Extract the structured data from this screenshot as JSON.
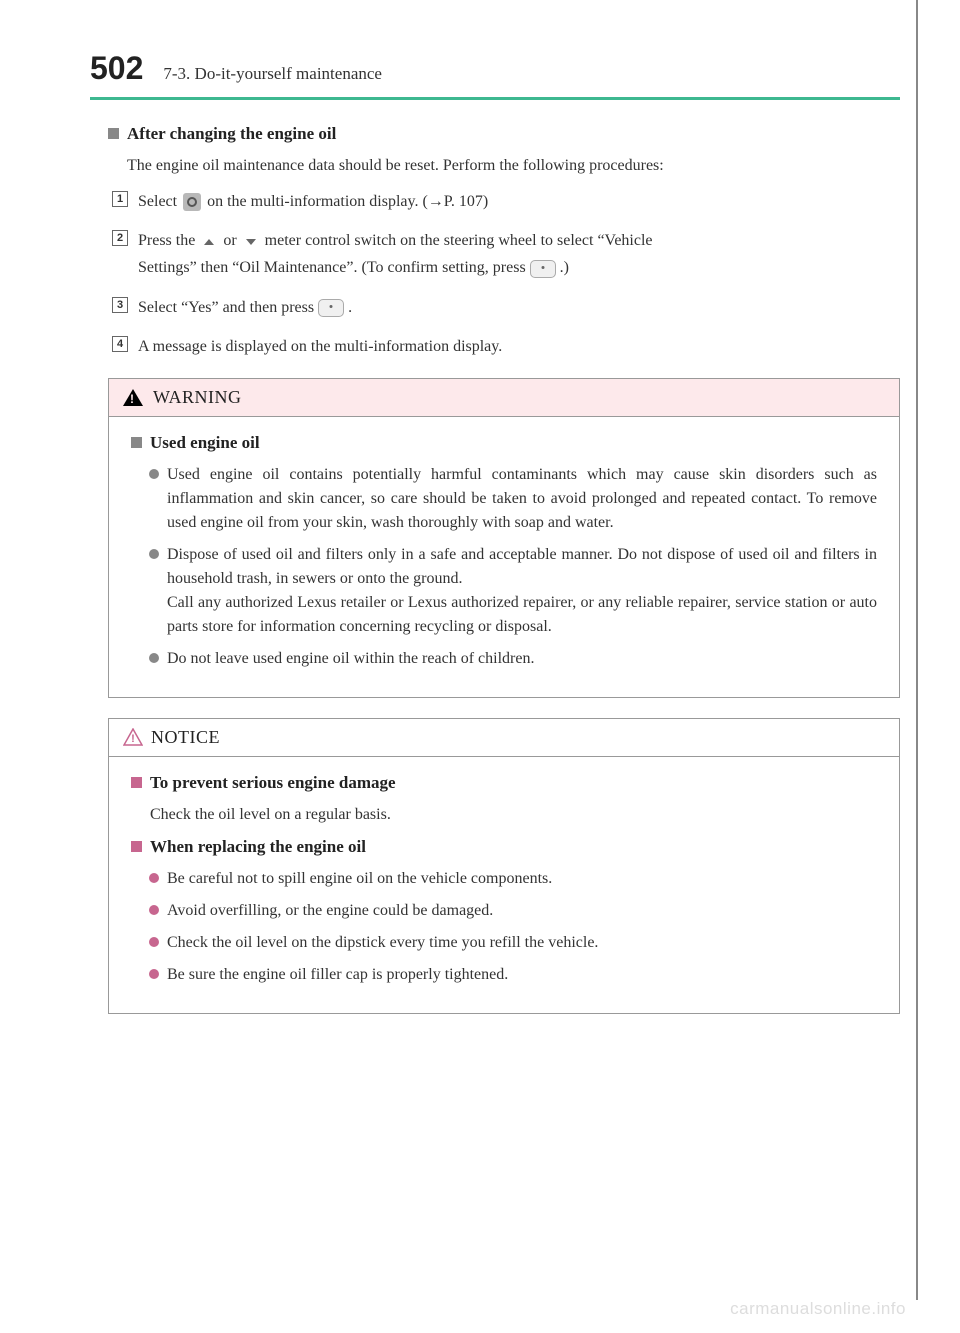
{
  "page_number": "502",
  "section_title": "7-3. Do-it-yourself maintenance",
  "colors": {
    "accent_green": "#3db890",
    "warning_bg": "#fde9eb",
    "pink": "#c7668f",
    "gray": "#888888",
    "border": "#999999",
    "text": "#333333"
  },
  "main": {
    "heading": "After changing the engine oil",
    "intro": "The engine oil maintenance data should be reset. Perform the following procedures:",
    "steps": [
      {
        "num": "1",
        "before": "Select ",
        "icon": "gear",
        "after": " on the multi-information display. (→P. 107)"
      },
      {
        "num": "2",
        "line1_before": "Press the ",
        "line1_mid": " or ",
        "line1_after": " meter control switch on the steering wheel to select “Vehicle",
        "line2_before": "Settings” then “Oil Maintenance”. (To confirm setting, press ",
        "line2_after": " .)"
      },
      {
        "num": "3",
        "before": "Select “Yes” and then press ",
        "after": " ."
      },
      {
        "num": "4",
        "text": "A message is displayed on the multi-information display."
      }
    ]
  },
  "warning": {
    "title": "WARNING",
    "heading": "Used engine oil",
    "bullets": [
      "Used engine oil contains potentially harmful contaminants which may cause skin disorders such as inflammation and skin cancer, so care should be taken to avoid prolonged and repeated contact. To remove used engine oil from your skin, wash thoroughly with soap and water.",
      "Dispose of used oil and filters only in a safe and acceptable manner. Do not dispose of used oil and filters in household trash, in sewers or onto the ground.\nCall any authorized Lexus retailer or Lexus authorized repairer, or any reliable repairer, service station or auto parts store for information concerning recycling or disposal.",
      "Do not leave used engine oil within the reach of children."
    ]
  },
  "notice": {
    "title": "NOTICE",
    "sections": [
      {
        "heading": "To prevent serious engine damage",
        "body": "Check the oil level on a regular basis."
      },
      {
        "heading": "When replacing the engine oil",
        "bullets": [
          "Be careful not to spill engine oil on the vehicle components.",
          "Avoid overfilling, or the engine could be damaged.",
          "Check the oil level on the dipstick every time you refill the vehicle.",
          "Be sure the engine oil filler cap is properly tightened."
        ]
      }
    ]
  },
  "watermark": "carmanualsonline.info"
}
